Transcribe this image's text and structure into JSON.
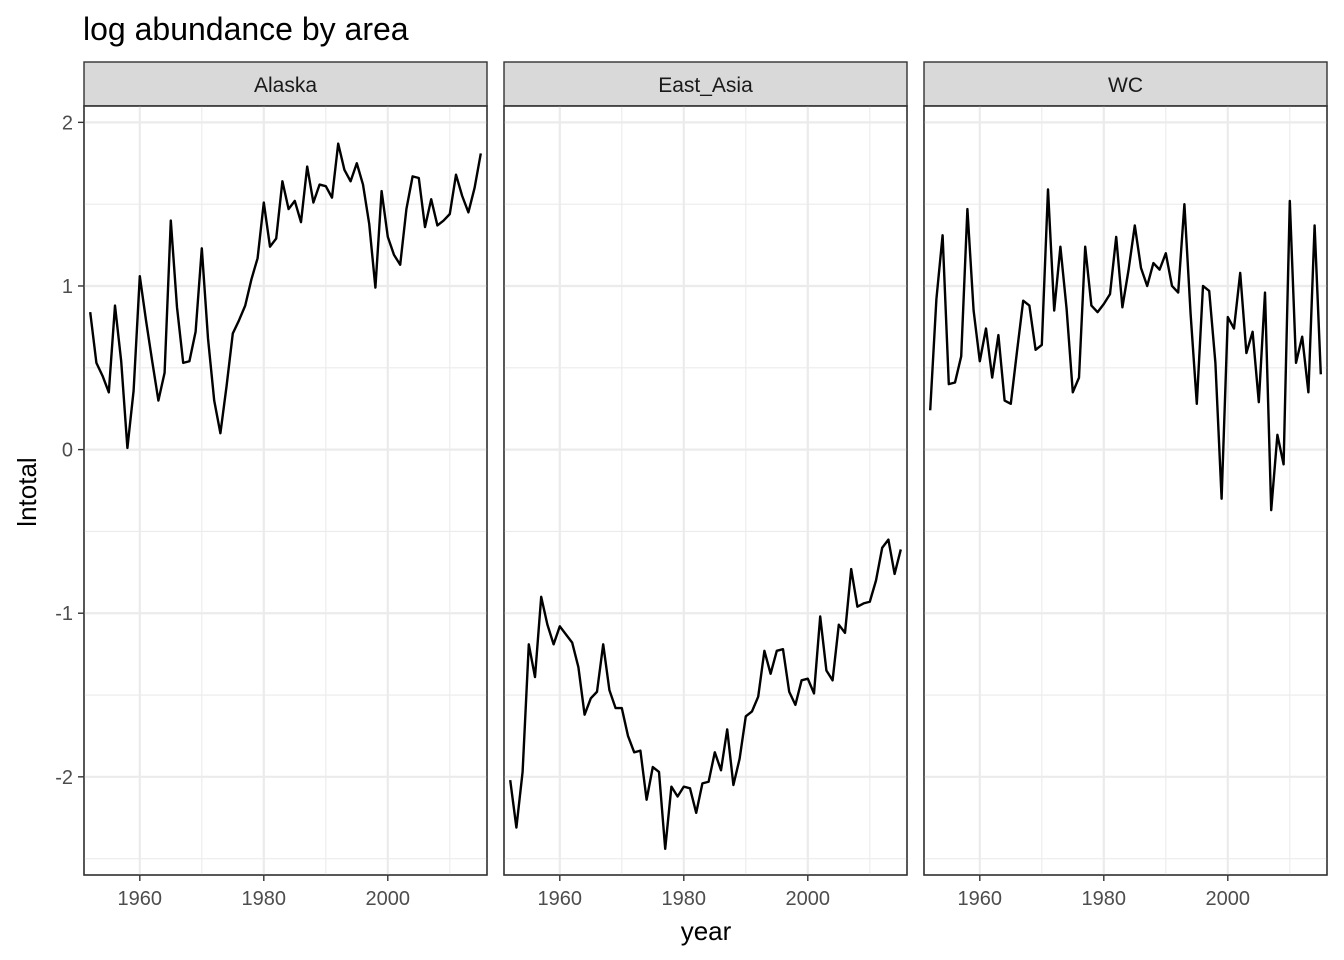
{
  "chart_data": {
    "type": "line",
    "title": "log abundance by area",
    "xlabel": "year",
    "ylabel": "lntotal",
    "xlim": [
      1951,
      2016
    ],
    "ylim": [
      -2.6,
      2.1
    ],
    "x_ticks": [
      1960,
      1980,
      2000
    ],
    "x_tick_labels": [
      "1960",
      "1980",
      "2000"
    ],
    "y_ticks": [
      2,
      1,
      0,
      -1,
      -2
    ],
    "y_tick_labels": [
      "2",
      "1",
      "0",
      "-1",
      "-2"
    ],
    "grid": true,
    "x": [
      1952,
      1953,
      1954,
      1955,
      1956,
      1957,
      1958,
      1959,
      1960,
      1961,
      1962,
      1963,
      1964,
      1965,
      1966,
      1967,
      1968,
      1969,
      1970,
      1971,
      1972,
      1973,
      1974,
      1975,
      1976,
      1977,
      1978,
      1979,
      1980,
      1981,
      1982,
      1983,
      1984,
      1985,
      1986,
      1987,
      1988,
      1989,
      1990,
      1991,
      1992,
      1993,
      1994,
      1995,
      1996,
      1997,
      1998,
      1999,
      2000,
      2001,
      2002,
      2003,
      2004,
      2005,
      2006,
      2007,
      2008,
      2009,
      2010,
      2011,
      2012,
      2013,
      2014,
      2015
    ],
    "series": [
      {
        "name": "Alaska",
        "values": [
          0.84,
          0.53,
          0.45,
          0.35,
          0.88,
          0.54,
          0.01,
          0.36,
          1.06,
          0.79,
          0.54,
          0.3,
          0.47,
          1.4,
          0.87,
          0.53,
          0.54,
          0.72,
          1.23,
          0.68,
          0.3,
          0.1,
          0.39,
          0.71,
          0.79,
          0.88,
          1.04,
          1.17,
          1.51,
          1.24,
          1.29,
          1.64,
          1.47,
          1.52,
          1.39,
          1.73,
          1.51,
          1.62,
          1.61,
          1.54,
          1.87,
          1.71,
          1.64,
          1.75,
          1.62,
          1.38,
          0.99,
          1.58,
          1.3,
          1.19,
          1.13,
          1.47,
          1.67,
          1.66,
          1.36,
          1.53,
          1.37,
          1.4,
          1.44,
          1.68,
          1.55,
          1.45,
          1.6,
          1.81
        ]
      },
      {
        "name": "East_Asia",
        "values": [
          -2.02,
          -2.31,
          -1.97,
          -1.19,
          -1.39,
          -0.9,
          -1.07,
          -1.19,
          -1.08,
          -1.13,
          -1.18,
          -1.33,
          -1.62,
          -1.52,
          -1.48,
          -1.19,
          -1.47,
          -1.58,
          -1.58,
          -1.75,
          -1.85,
          -1.84,
          -2.14,
          -1.94,
          -1.97,
          -2.44,
          -2.06,
          -2.12,
          -2.06,
          -2.07,
          -2.22,
          -2.04,
          -2.03,
          -1.85,
          -1.96,
          -1.71,
          -2.05,
          -1.89,
          -1.63,
          -1.6,
          -1.51,
          -1.23,
          -1.37,
          -1.23,
          -1.22,
          -1.48,
          -1.56,
          -1.41,
          -1.4,
          -1.49,
          -1.02,
          -1.35,
          -1.41,
          -1.07,
          -1.12,
          -0.73,
          -0.96,
          -0.94,
          -0.93,
          -0.8,
          -0.6,
          -0.55,
          -0.76,
          -0.61
        ]
      },
      {
        "name": "WC",
        "values": [
          0.24,
          0.92,
          1.31,
          0.4,
          0.41,
          0.57,
          1.47,
          0.85,
          0.54,
          0.74,
          0.44,
          0.7,
          0.3,
          0.28,
          0.6,
          0.91,
          0.88,
          0.61,
          0.64,
          1.59,
          0.85,
          1.24,
          0.86,
          0.35,
          0.44,
          1.24,
          0.88,
          0.84,
          0.89,
          0.95,
          1.3,
          0.87,
          1.1,
          1.37,
          1.11,
          1.0,
          1.14,
          1.1,
          1.2,
          1.0,
          0.96,
          1.5,
          0.83,
          0.28,
          1.0,
          0.97,
          0.53,
          -0.3,
          0.81,
          0.74,
          1.08,
          0.59,
          0.72,
          0.29,
          0.96,
          -0.37,
          0.09,
          -0.09,
          1.52,
          0.53,
          0.69,
          0.35,
          1.37,
          0.46
        ]
      }
    ]
  }
}
